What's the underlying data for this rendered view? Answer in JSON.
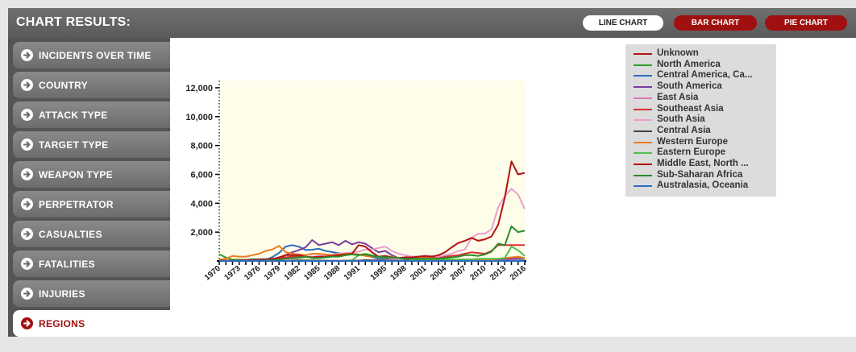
{
  "header": {
    "title": "CHART RESULTS:"
  },
  "chart_buttons": {
    "line": "LINE CHART",
    "bar": "BAR CHART",
    "pie": "PIE CHART"
  },
  "sidebar": {
    "items": [
      {
        "label": "INCIDENTS OVER TIME",
        "active": false
      },
      {
        "label": "COUNTRY",
        "active": false
      },
      {
        "label": "ATTACK TYPE",
        "active": false
      },
      {
        "label": "TARGET TYPE",
        "active": false
      },
      {
        "label": "WEAPON TYPE",
        "active": false
      },
      {
        "label": "PERPETRATOR",
        "active": false
      },
      {
        "label": "CASUALTIES",
        "active": false
      },
      {
        "label": "FATALITIES",
        "active": false
      },
      {
        "label": "INJURIES",
        "active": false
      },
      {
        "label": "REGIONS",
        "active": true
      }
    ]
  },
  "colors": {
    "header_bg": "#636363",
    "accent_red": "#a01010",
    "plot_bg": "#fdfde9",
    "sidebar_bg": "#777777"
  },
  "chart_data": {
    "type": "line",
    "x": [
      1970,
      1971,
      1972,
      1973,
      1974,
      1975,
      1976,
      1977,
      1978,
      1979,
      1980,
      1981,
      1982,
      1983,
      1984,
      1985,
      1986,
      1987,
      1988,
      1989,
      1990,
      1991,
      1992,
      1993,
      1994,
      1995,
      1996,
      1997,
      1998,
      1999,
      2000,
      2001,
      2002,
      2003,
      2004,
      2005,
      2006,
      2007,
      2008,
      2009,
      2010,
      2011,
      2012,
      2013,
      2014,
      2015,
      2016
    ],
    "x_tick_labels": [
      "1970",
      "1973",
      "1976",
      "1979",
      "1982",
      "1985",
      "1988",
      "1991",
      "1995",
      "1998",
      "2001",
      "2004",
      "2007",
      "2010",
      "2013",
      "2016"
    ],
    "y_ticks": [
      2000,
      4000,
      6000,
      8000,
      10000,
      12000
    ],
    "y_tick_labels": [
      "2,000",
      "4,000",
      "6,000",
      "8,000",
      "10,000",
      "12,000"
    ],
    "ylim": [
      0,
      12500
    ],
    "grid": false,
    "legend_position": "top-right",
    "series": [
      {
        "name": "Unknown",
        "color": "#b01818",
        "values": [
          0,
          0,
          0,
          0,
          0,
          0,
          0,
          0,
          0,
          0,
          0,
          0,
          0,
          0,
          0,
          0,
          0,
          0,
          0,
          0,
          0,
          0,
          0,
          0,
          0,
          0,
          0,
          0,
          0,
          0,
          0,
          0,
          0,
          0,
          0,
          0,
          0,
          0,
          0,
          0,
          0,
          0,
          0,
          0,
          0,
          0,
          0
        ]
      },
      {
        "name": "North America",
        "color": "#2e9e2e",
        "values": [
          470,
          240,
          90,
          90,
          80,
          120,
          120,
          140,
          110,
          80,
          90,
          80,
          80,
          60,
          50,
          40,
          40,
          30,
          30,
          40,
          40,
          40,
          40,
          30,
          30,
          40,
          30,
          30,
          30,
          20,
          20,
          40,
          30,
          20,
          20,
          20,
          30,
          20,
          30,
          30,
          20,
          20,
          20,
          20,
          30,
          40,
          70
        ]
      },
      {
        "name": "Central America, Caribbean",
        "color": "#2d6cc0",
        "values": [
          20,
          20,
          20,
          30,
          20,
          30,
          40,
          80,
          270,
          560,
          1000,
          1100,
          990,
          760,
          780,
          850,
          700,
          620,
          530,
          520,
          500,
          450,
          370,
          280,
          160,
          120,
          60,
          30,
          20,
          10,
          10,
          10,
          10,
          10,
          5,
          5,
          5,
          5,
          5,
          5,
          5,
          5,
          5,
          5,
          5,
          5,
          5
        ]
      },
      {
        "name": "South America",
        "color": "#7a3b9e",
        "values": [
          10,
          20,
          30,
          30,
          60,
          90,
          110,
          120,
          140,
          180,
          410,
          600,
          760,
          950,
          1450,
          1100,
          1200,
          1300,
          1100,
          1400,
          1150,
          1300,
          1200,
          900,
          600,
          700,
          400,
          200,
          150,
          150,
          100,
          150,
          150,
          120,
          80,
          70,
          90,
          100,
          110,
          130,
          140,
          100,
          110,
          120,
          150,
          180,
          200
        ]
      },
      {
        "name": "East Asia",
        "color": "#d877b8",
        "values": [
          5,
          5,
          5,
          5,
          5,
          5,
          5,
          5,
          5,
          5,
          10,
          10,
          10,
          10,
          10,
          10,
          20,
          20,
          30,
          30,
          40,
          40,
          50,
          60,
          50,
          60,
          50,
          40,
          30,
          20,
          10,
          20,
          20,
          10,
          10,
          10,
          10,
          30,
          30,
          20,
          20,
          20,
          30,
          40,
          40,
          30,
          30
        ]
      },
      {
        "name": "Southeast Asia",
        "color": "#d83030",
        "values": [
          20,
          20,
          30,
          30,
          40,
          50,
          70,
          100,
          150,
          200,
          250,
          300,
          300,
          250,
          300,
          300,
          350,
          400,
          450,
          500,
          500,
          450,
          400,
          350,
          300,
          250,
          200,
          200,
          250,
          300,
          300,
          250,
          250,
          200,
          300,
          350,
          400,
          500,
          600,
          550,
          500,
          700,
          1100,
          1100,
          1100,
          1100,
          1100
        ]
      },
      {
        "name": "South Asia",
        "color": "#ea9fd0",
        "values": [
          0,
          0,
          0,
          0,
          0,
          10,
          10,
          20,
          30,
          50,
          100,
          150,
          200,
          250,
          300,
          350,
          400,
          450,
          500,
          550,
          600,
          650,
          800,
          800,
          900,
          1000,
          700,
          500,
          400,
          300,
          300,
          350,
          350,
          300,
          400,
          500,
          700,
          800,
          1600,
          1900,
          1900,
          2200,
          3700,
          4500,
          5000,
          4600,
          3600
        ]
      },
      {
        "name": "Central Asia",
        "color": "#444444",
        "values": [
          0,
          0,
          0,
          0,
          0,
          0,
          0,
          0,
          0,
          0,
          0,
          0,
          0,
          0,
          0,
          0,
          0,
          0,
          0,
          0,
          0,
          0,
          60,
          40,
          30,
          30,
          20,
          20,
          20,
          20,
          20,
          20,
          10,
          10,
          10,
          10,
          10,
          10,
          10,
          10,
          10,
          10,
          10,
          10,
          10,
          10,
          10
        ]
      },
      {
        "name": "Western Europe",
        "color": "#ee7a20",
        "values": [
          100,
          150,
          350,
          300,
          300,
          400,
          500,
          700,
          800,
          1050,
          600,
          500,
          450,
          400,
          500,
          500,
          450,
          400,
          450,
          500,
          500,
          450,
          350,
          300,
          300,
          300,
          300,
          200,
          150,
          150,
          200,
          200,
          200,
          150,
          100,
          100,
          100,
          100,
          100,
          100,
          100,
          100,
          150,
          200,
          250,
          300,
          200
        ]
      },
      {
        "name": "Eastern Europe",
        "color": "#4fbf4f",
        "values": [
          0,
          0,
          0,
          0,
          0,
          0,
          0,
          0,
          0,
          0,
          0,
          0,
          0,
          0,
          0,
          0,
          0,
          0,
          0,
          0,
          50,
          400,
          500,
          400,
          300,
          200,
          250,
          200,
          150,
          100,
          100,
          100,
          100,
          100,
          100,
          100,
          100,
          100,
          100,
          150,
          150,
          150,
          150,
          200,
          1000,
          750,
          350
        ]
      },
      {
        "name": "Middle East, North Africa",
        "color": "#b31111",
        "values": [
          20,
          20,
          20,
          30,
          40,
          50,
          60,
          80,
          120,
          250,
          400,
          400,
          400,
          300,
          250,
          300,
          300,
          350,
          400,
          450,
          500,
          1100,
          1000,
          600,
          300,
          350,
          250,
          200,
          250,
          250,
          300,
          350,
          300,
          400,
          600,
          950,
          1250,
          1400,
          1600,
          1400,
          1500,
          1700,
          2500,
          4400,
          6900,
          6000,
          6100
        ]
      },
      {
        "name": "Sub-Saharan Africa",
        "color": "#2a8a2a",
        "values": [
          0,
          0,
          0,
          5,
          10,
          20,
          30,
          40,
          50,
          100,
          150,
          200,
          250,
          300,
          200,
          200,
          250,
          300,
          300,
          400,
          450,
          400,
          450,
          350,
          300,
          250,
          250,
          200,
          150,
          150,
          150,
          150,
          150,
          150,
          200,
          250,
          300,
          400,
          400,
          350,
          450,
          650,
          1200,
          1100,
          2400,
          2000,
          2100
        ]
      },
      {
        "name": "Australasia, Oceania",
        "color": "#2d6cc0",
        "values": [
          0,
          0,
          0,
          0,
          0,
          0,
          0,
          0,
          0,
          0,
          0,
          0,
          0,
          0,
          0,
          0,
          0,
          0,
          0,
          0,
          0,
          0,
          0,
          0,
          0,
          0,
          0,
          0,
          0,
          0,
          0,
          0,
          0,
          0,
          0,
          0,
          0,
          0,
          0,
          0,
          0,
          0,
          0,
          0,
          0,
          0,
          0
        ]
      }
    ]
  }
}
